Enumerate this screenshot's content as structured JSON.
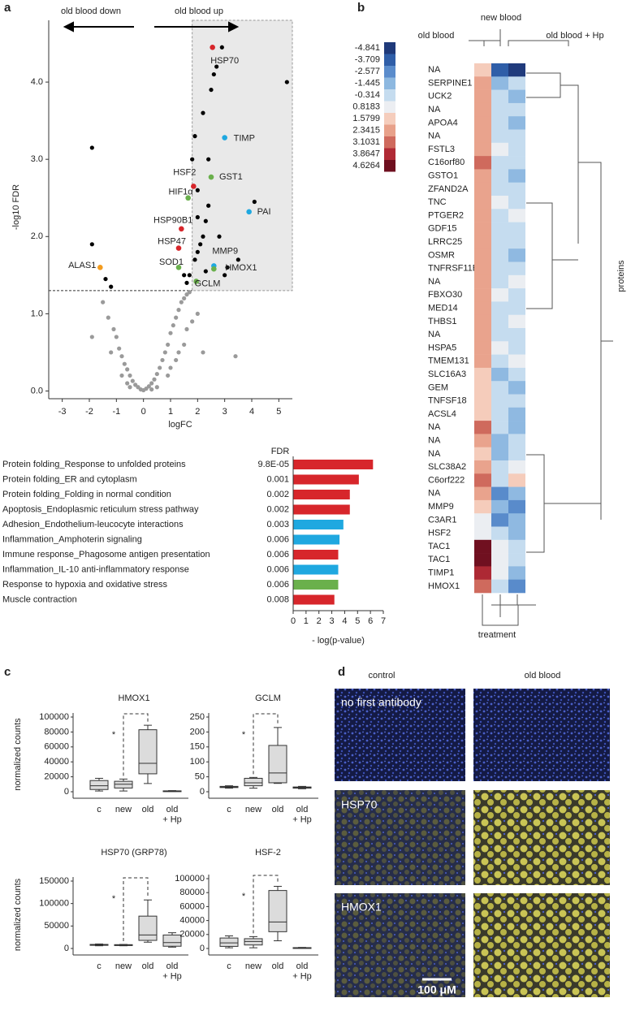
{
  "panel_labels": [
    "a",
    "b",
    "c",
    "d"
  ],
  "chart_data": [
    {
      "type": "scatter",
      "xlabel": "logFC",
      "ylabel": "-log10 FDR",
      "xlim": [
        -3.5,
        5.5
      ],
      "ylim": [
        -0.1,
        4.8
      ],
      "xticks": [
        -3,
        -2,
        -1,
        0,
        1,
        2,
        3,
        4,
        5
      ],
      "yticks": [
        {
          "value": 0,
          "label": "0.0"
        },
        {
          "value": 1,
          "label": "1.0"
        },
        {
          "value": 2,
          "label": "2.0"
        },
        {
          "value": 3,
          "label": "3.0"
        },
        {
          "value": 4,
          "label": "4.0"
        }
      ],
      "annotations": [
        "old blood down",
        "old blood up"
      ],
      "thresholds": {
        "x": 1.8,
        "y": 1.3
      },
      "series": [
        {
          "color": "#9a9a9a",
          "x": [
            -1.5,
            -1.3,
            -1.1,
            -1.0,
            -0.9,
            -0.8,
            -0.7,
            -0.6,
            -0.5,
            -0.4,
            -0.3,
            -0.2,
            -0.1,
            0,
            0.1,
            0.2,
            0.3,
            0.4,
            0.5,
            0.6,
            0.7,
            0.8,
            0.9,
            1.0,
            1.1,
            1.2,
            1.3,
            1.4,
            1.5,
            1.6,
            1.7,
            -0.8,
            -0.5,
            0.5,
            0.9,
            1.2,
            1.5,
            -1.2,
            -0.6,
            0.3,
            1.0,
            1.3,
            1.6,
            3.4,
            2.2,
            -1.9,
            1.8,
            2.0
          ],
          "y": [
            1.15,
            0.95,
            0.8,
            0.7,
            0.55,
            0.45,
            0.35,
            0.28,
            0.2,
            0.13,
            0.08,
            0.05,
            0.02,
            0.01,
            0.03,
            0.06,
            0.1,
            0.15,
            0.22,
            0.3,
            0.4,
            0.5,
            0.6,
            0.75,
            0.85,
            0.95,
            1.05,
            1.15,
            1.2,
            1.25,
            1.28,
            0.2,
            0.05,
            0.05,
            0.2,
            0.4,
            0.6,
            0.5,
            0.1,
            0.02,
            0.3,
            0.5,
            0.8,
            0.45,
            0.5,
            0.7,
            0.9,
            1.0
          ]
        },
        {
          "color": "#000000",
          "x": [
            -1.9,
            -1.9,
            -1.4,
            -1.2,
            1.6,
            1.7,
            1.9,
            2.0,
            2.1,
            2.2,
            2.3,
            2.4,
            2.0,
            1.8,
            1.9,
            2.2,
            2.5,
            2.7,
            2.9,
            3.1,
            2.3,
            2.8,
            3.5,
            4.1,
            5.3,
            2.6,
            1.5,
            2.0,
            2.4,
            3.0
          ],
          "y": [
            1.9,
            3.15,
            1.45,
            1.35,
            1.4,
            1.5,
            1.7,
            1.8,
            1.9,
            2.0,
            2.2,
            2.4,
            2.6,
            3.0,
            3.3,
            3.6,
            3.9,
            4.2,
            4.45,
            1.6,
            1.55,
            2.0,
            1.7,
            2.45,
            4.0,
            4.1,
            1.5,
            2.25,
            3.0,
            1.5
          ]
        }
      ],
      "labeled_points": {
        "labels": [
          "HSP70",
          "TIMP",
          "HSF2",
          "GST1",
          "HIF1α",
          "PAI",
          "HSP90B1",
          "HSP47",
          "MMP9",
          "HMOX1",
          "SOD1",
          "GCLM",
          "ALAS1"
        ],
        "x": [
          2.55,
          3.0,
          1.85,
          2.5,
          1.65,
          3.9,
          1.4,
          1.3,
          2.6,
          2.6,
          1.3,
          1.95,
          -1.6
        ],
        "y": [
          4.45,
          3.28,
          2.65,
          2.77,
          2.5,
          2.32,
          2.1,
          1.85,
          1.62,
          1.58,
          1.6,
          1.42,
          1.6
        ],
        "colors": [
          "#d7262b",
          "#1fa8e0",
          "#d7262b",
          "#6ab04c",
          "#6ab04c",
          "#1fa8e0",
          "#d7262b",
          "#d7262b",
          "#1fa8e0",
          "#6ab04c",
          "#6ab04c",
          "#6ab04c",
          "#f39c1f"
        ]
      }
    },
    {
      "type": "bar",
      "orientation": "horizontal",
      "header": "FDR",
      "xlabel": "- log(p-value)",
      "categories": [
        "Protein folding_Response to unfolded proteins",
        "Protein folding_ER and cytoplasm",
        "Protein folding_Folding in normal condition",
        "Apoptosis_Endoplasmic reticulum stress pathway",
        "Adhesion_Endothelium-leucocyte interactions",
        "Inflammation_Amphoterin signaling",
        "Immune response_Phagosome antigen presentation",
        "Inflammation_IL-10 anti-inflammatory response",
        "Response to hypoxia and oxidative stress",
        "Muscle contraction"
      ],
      "label_colors": [
        "#d7262b",
        "#d7262b",
        "#d7262b",
        "#d7262b",
        "#1fa8e0",
        "#1fa8e0",
        "#d7262b",
        "#1fa8e0",
        "#6ab04c",
        "#222222"
      ],
      "fdr": [
        "9.8E-05",
        "0.001",
        "0.002",
        "0.002",
        "0.003",
        "0.006",
        "0.006",
        "0.006",
        "0.006",
        "0.008"
      ],
      "fdr_colors": [
        "#d7262b",
        "#d7262b",
        "#d7262b",
        "#d7262b",
        "#6ab04c",
        "#6ab04c",
        "#d7262b",
        "#6ab04c",
        "#1fa8e0",
        "#222222"
      ],
      "values": [
        6.2,
        5.1,
        4.4,
        4.4,
        3.9,
        3.6,
        3.5,
        3.5,
        3.5,
        3.2
      ],
      "colors": [
        "#d7262b",
        "#d7262b",
        "#d7262b",
        "#d7262b",
        "#1fa8e0",
        "#1fa8e0",
        "#d7262b",
        "#1fa8e0",
        "#6ab04c",
        "#d7262b"
      ],
      "xlim": [
        0,
        7
      ],
      "xticks": [
        0,
        1,
        2,
        3,
        4,
        5,
        6,
        7
      ]
    },
    {
      "type": "heatmap",
      "columns": [
        "old blood",
        "new blood",
        "old blood + Hp"
      ],
      "row_axis_label": "proteins",
      "column_axis_label": "treatment",
      "rows": [
        "NA",
        "SERPINE1",
        "UCK2",
        "NA",
        "APOA4",
        "NA",
        "FSTL3",
        "C16orf80",
        "GSTO1",
        "ZFAND2A",
        "TNC",
        "PTGER2",
        "GDF15",
        "LRRC25",
        "OSMR",
        "TNFRSF11B",
        "NA",
        "FBXO30",
        "MED14",
        "THBS1",
        "NA",
        "HSPA5",
        "TMEM131",
        "SLC16A3",
        "GEM",
        "TNFSF18",
        "ACSL4",
        "NA",
        "NA",
        "NA",
        "SLC38A2",
        "C6orf222",
        "NA",
        "MMP9",
        "C3AR1",
        "HSF2",
        "TAC1",
        "TAC1",
        "TIMP1",
        "HMOX1"
      ],
      "values": [
        [
          1.6,
          -3.7,
          -4.8
        ],
        [
          2.3,
          -1.4,
          -0.3
        ],
        [
          2.3,
          -0.3,
          -1.4
        ],
        [
          2.3,
          -0.3,
          -0.3
        ],
        [
          2.3,
          -0.3,
          -1.4
        ],
        [
          2.3,
          -0.3,
          -0.3
        ],
        [
          2.3,
          0.8,
          -0.3
        ],
        [
          3.1,
          -0.3,
          -0.3
        ],
        [
          2.3,
          -0.3,
          -1.4
        ],
        [
          2.3,
          -0.3,
          -0.3
        ],
        [
          2.3,
          0.8,
          -0.3
        ],
        [
          2.3,
          -0.3,
          0.8
        ],
        [
          2.3,
          -0.3,
          -0.3
        ],
        [
          2.3,
          -0.3,
          -0.3
        ],
        [
          2.3,
          -0.3,
          -1.4
        ],
        [
          2.3,
          -0.3,
          -0.3
        ],
        [
          2.3,
          -0.3,
          0.8
        ],
        [
          2.3,
          0.8,
          -0.3
        ],
        [
          2.3,
          -0.3,
          -0.3
        ],
        [
          2.3,
          -0.3,
          0.8
        ],
        [
          2.3,
          -0.3,
          -0.3
        ],
        [
          2.3,
          0.8,
          -0.3
        ],
        [
          2.3,
          -0.3,
          0.8
        ],
        [
          1.6,
          -1.4,
          -0.3
        ],
        [
          1.6,
          -0.3,
          -1.4
        ],
        [
          1.6,
          -0.3,
          -0.3
        ],
        [
          1.6,
          -0.3,
          -1.4
        ],
        [
          3.1,
          -0.3,
          -1.4
        ],
        [
          2.3,
          -1.4,
          -0.3
        ],
        [
          1.6,
          -1.4,
          -0.3
        ],
        [
          2.3,
          -0.3,
          0.8
        ],
        [
          3.1,
          -0.3,
          1.6
        ],
        [
          2.3,
          -2.6,
          -1.4
        ],
        [
          1.6,
          -1.4,
          -2.6
        ],
        [
          0.8,
          -2.6,
          -1.4
        ],
        [
          0.8,
          -0.3,
          -1.4
        ],
        [
          4.6,
          0.8,
          -0.3
        ],
        [
          4.6,
          0.8,
          -0.3
        ],
        [
          3.9,
          0.8,
          -1.4
        ],
        [
          3.1,
          -0.3,
          -2.6
        ]
      ],
      "colorscale": {
        "values": [
          -4.841,
          -3.709,
          -2.577,
          -1.445,
          -0.314,
          0.8183,
          1.5799,
          2.3415,
          3.1031,
          3.8647,
          4.6264
        ],
        "colors": [
          "#1f3a7a",
          "#2f5ea8",
          "#5a8ccc",
          "#8db8e0",
          "#c5dcef",
          "#eceef2",
          "#f5cdbc",
          "#e8a18a",
          "#cf6a5d",
          "#b02a35",
          "#6e0f1f"
        ]
      }
    },
    {
      "type": "box",
      "title": "HMOX1",
      "ylabel": "normalized counts",
      "annotation": "*",
      "categories": [
        "c",
        "new",
        "old",
        "old\n+ Hp"
      ],
      "boxes": [
        [
          1000,
          3000,
          8000,
          15000,
          18000
        ],
        [
          1000,
          5000,
          10000,
          14000,
          17000
        ],
        [
          11000,
          24000,
          38000,
          83000,
          89000
        ],
        [
          500,
          700,
          1000,
          1200,
          1500
        ]
      ],
      "ylim": [
        0,
        100000
      ],
      "yticks": [
        0,
        20000,
        40000,
        60000,
        80000,
        100000
      ]
    },
    {
      "type": "box",
      "title": "GCLM",
      "annotation": "*",
      "categories": [
        "c",
        "new",
        "old",
        "old\n+ Hp"
      ],
      "boxes": [
        [
          12,
          14,
          16,
          18,
          20
        ],
        [
          12,
          20,
          30,
          45,
          48
        ],
        [
          28,
          30,
          63,
          155,
          215
        ],
        [
          10,
          12,
          14,
          16,
          18
        ]
      ],
      "ylim": [
        0,
        250
      ],
      "yticks": [
        0,
        50,
        100,
        150,
        200,
        250
      ]
    },
    {
      "type": "box",
      "title": "HSP70 (GRP78)",
      "ylabel": "normalized counts",
      "annotation": "*",
      "categories": [
        "c",
        "new",
        "old",
        "old\n+ Hp"
      ],
      "boxes": [
        [
          6000,
          7000,
          8000,
          9000,
          10000
        ],
        [
          6000,
          6500,
          7500,
          8500,
          9000
        ],
        [
          14000,
          18000,
          30000,
          72000,
          108000
        ],
        [
          3000,
          5000,
          13000,
          30000,
          35000
        ]
      ],
      "ylim": [
        0,
        150000
      ],
      "yticks": [
        0,
        50000,
        100000,
        150000
      ]
    },
    {
      "type": "box",
      "title": "HSF-2",
      "annotation": "*",
      "categories": [
        "c",
        "new",
        "old",
        "old\n+ Hp"
      ],
      "boxes": [
        [
          1000,
          3000,
          8000,
          15000,
          18000
        ],
        [
          1000,
          5000,
          10000,
          14000,
          17000
        ],
        [
          11000,
          24000,
          38000,
          83000,
          89000
        ],
        [
          500,
          700,
          1000,
          1200,
          1500
        ]
      ],
      "ylim": [
        0,
        100000
      ],
      "yticks": [
        0,
        20000,
        40000,
        60000,
        80000,
        100000
      ]
    }
  ],
  "panel_d": {
    "columns": [
      "control",
      "old blood"
    ],
    "rows": [
      "no first antibody",
      "HSP70",
      "HMOX1"
    ],
    "scale_bar": "100 μM"
  }
}
